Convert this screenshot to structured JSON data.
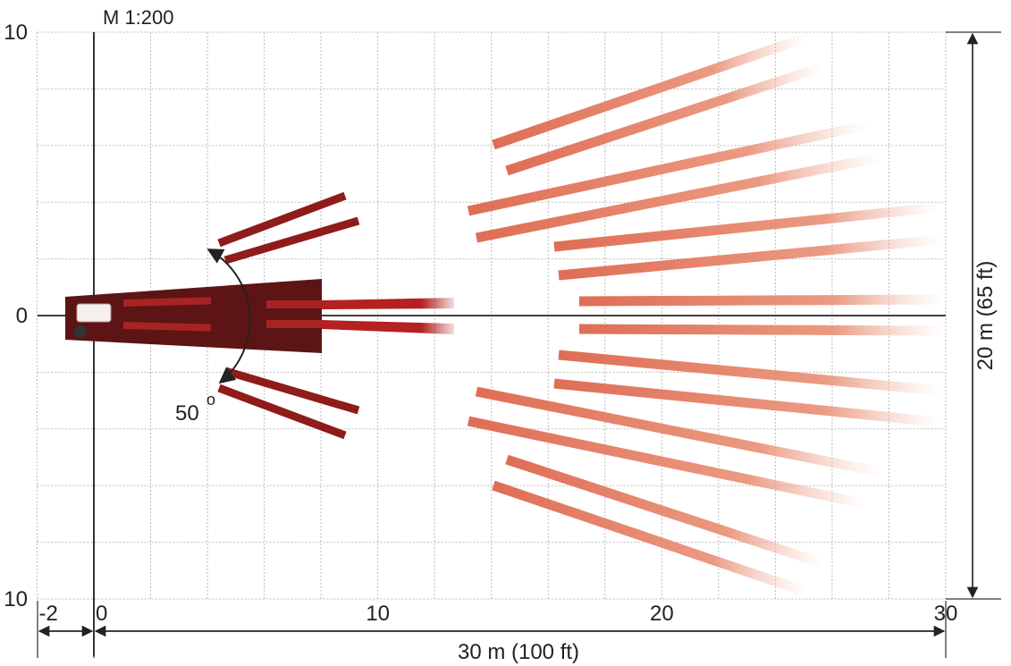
{
  "diagram": {
    "scale_label": "M 1:200",
    "y_ticks": [
      {
        "value": 10,
        "label": "10"
      },
      {
        "value": 0,
        "label": "0"
      },
      {
        "value": -10,
        "label": "10"
      }
    ],
    "x_ticks": [
      {
        "value": -2,
        "label": "-2"
      },
      {
        "value": 0,
        "label": "0"
      },
      {
        "value": 10,
        "label": "10"
      },
      {
        "value": 20,
        "label": "20"
      },
      {
        "value": 30,
        "label": "30"
      }
    ],
    "width_label": "30 m (100 ft)",
    "height_label": "20 m (65 ft)",
    "angle_label": "50",
    "degree_symbol": "o",
    "x_range_m": [
      -2,
      30
    ],
    "y_range_m": [
      -10,
      10
    ],
    "grid_step_m": 2,
    "colors": {
      "near_beam": "#8f1b1b",
      "main_beam": "#5c1414",
      "far_beam": "#e07a62",
      "grid": "#bbbbbb",
      "axis": "#000000"
    }
  }
}
